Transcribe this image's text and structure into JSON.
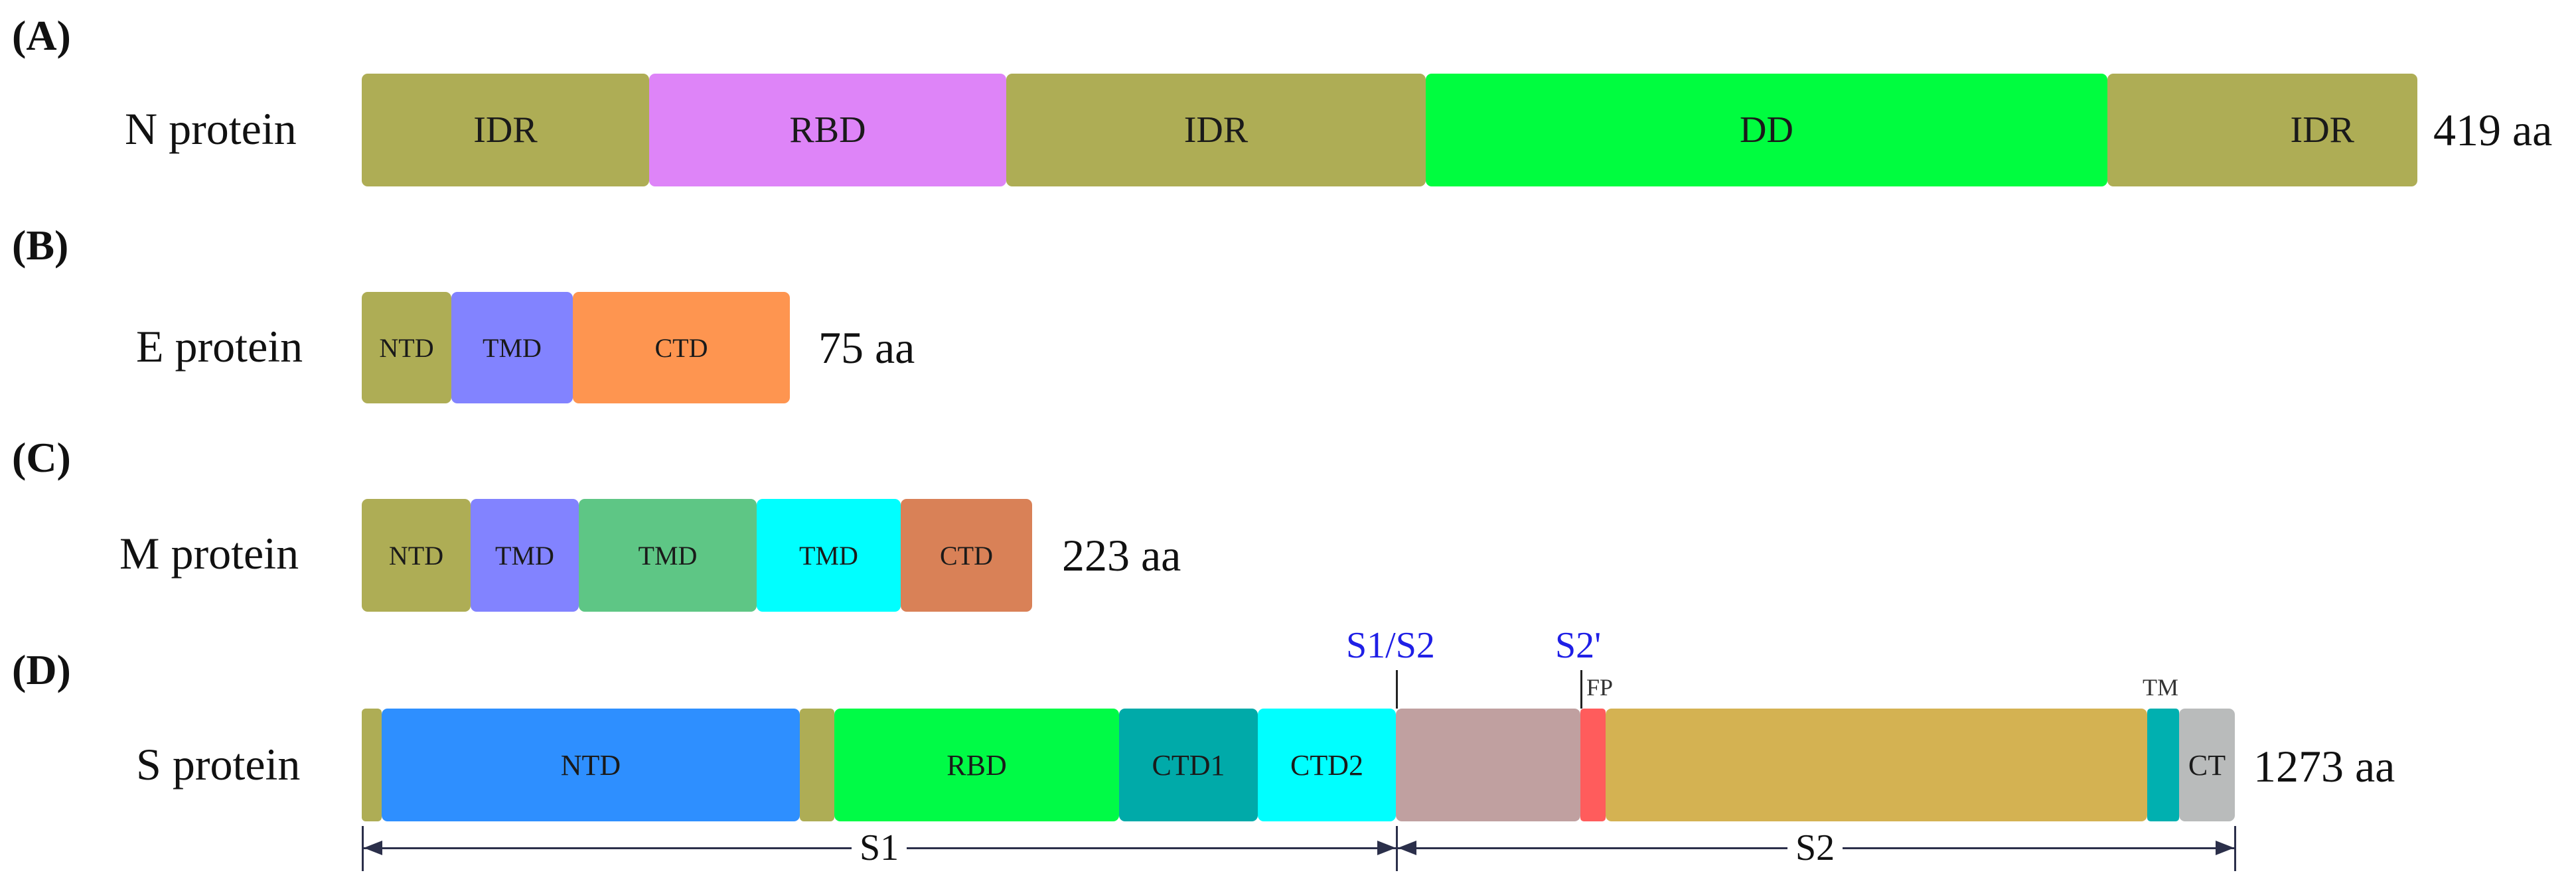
{
  "panels": {
    "A": {
      "label": "(A)",
      "name": "N protein",
      "length": "419 aa",
      "domains": [
        "IDR",
        "RBD",
        "IDR",
        "DD",
        "IDR"
      ]
    },
    "B": {
      "label": "(B)",
      "name": "E protein",
      "length": "75 aa",
      "domains": [
        "NTD",
        "TMD",
        "CTD"
      ]
    },
    "C": {
      "label": "(C)",
      "name": "M protein",
      "length": "223 aa",
      "domains": [
        "NTD",
        "TMD",
        "TMD",
        "TMD",
        "CTD"
      ]
    },
    "D": {
      "label": "(D)",
      "name": "S protein",
      "length": "1273 aa",
      "domains": [
        "NTD",
        "RBD",
        "CTD1",
        "CTD2",
        "CT"
      ],
      "sites": {
        "s1s2": "S1/S2",
        "s2prime": "S2'"
      },
      "marks": {
        "fp": "FP",
        "tm": "TM"
      },
      "subunits": {
        "s1": "S1",
        "s2": "S2"
      }
    }
  },
  "colors": {
    "idr": "#aead55",
    "rbd_pink": "#de84f8",
    "dd": "#00fd3f",
    "tmd_purple": "#8283ff",
    "ctd_orange": "#fe9550",
    "tmd_green": "#5ec685",
    "tmd_cyan": "#00ffff",
    "ctd_brown": "#d98157",
    "ntd_blue": "#2e8fff",
    "rbd_green": "#00fb46",
    "ctd1_teal": "#00aaa9",
    "cleavage_region": "#c0a0a0",
    "fp_red": "#ff5c5c",
    "s2_gold": "#d4b252",
    "tm_teal": "#00b0b0",
    "ct_gray": "#b9bbbb",
    "site_blue": "#1f1fe6"
  }
}
